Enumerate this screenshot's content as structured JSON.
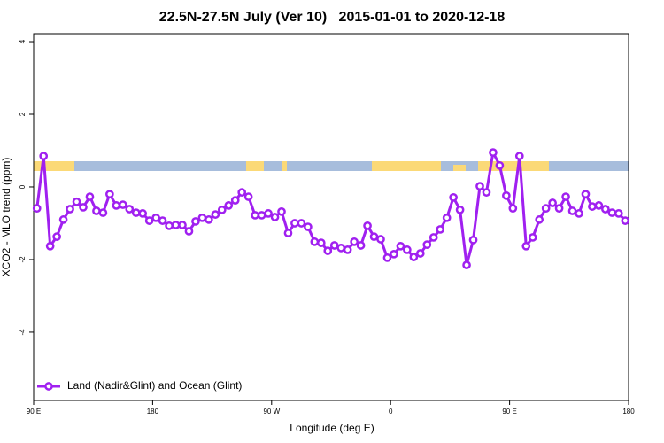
{
  "chart_data": {
    "type": "line",
    "title": "22.5N-27.5N July (Ver 10)   2015-01-01 to 2020-12-18",
    "x_label": "Longitude (deg E)",
    "y_label": "XCO2 - MLO trend (ppm)",
    "x": [
      92.5,
      97.5,
      102.5,
      107.5,
      112.5,
      117.5,
      122.5,
      127.5,
      132.5,
      137.5,
      142.5,
      147.5,
      152.5,
      157.5,
      162.5,
      167.5,
      172.5,
      177.5,
      182.5,
      187.5,
      192.5,
      197.5,
      202.5,
      207.5,
      212.5,
      217.5,
      222.5,
      227.5,
      232.5,
      237.5,
      242.5,
      247.5,
      252.5,
      257.5,
      262.5,
      267.5,
      272.5,
      277.5,
      282.5,
      287.5,
      292.5,
      297.5,
      302.5,
      307.5,
      312.5,
      317.5,
      322.5,
      327.5,
      332.5,
      337.5,
      342.5,
      347.5,
      352.5,
      357.5,
      362.5,
      367.5,
      372.5,
      377.5,
      382.5,
      387.5,
      392.5,
      397.5,
      402.5,
      407.5,
      412.5,
      417.5,
      422.5,
      427.5,
      432.5,
      437.5,
      442.5,
      447.5,
      452.5,
      457.5,
      462.5,
      467.5,
      472.5,
      477.5,
      482.5,
      487.5,
      492.5,
      497.5,
      502.5,
      507.5,
      512.5,
      517.5,
      522.5,
      527.5,
      532.5,
      537.5
    ],
    "series": [
      {
        "name": "Land (Nadir&Glint) and Ocean (Glint)",
        "color": "#a020f0",
        "values": [
          -0.59,
          0.85,
          -1.63,
          -1.37,
          -0.9,
          -0.61,
          -0.41,
          -0.56,
          -0.27,
          -0.66,
          -0.71,
          -0.2,
          -0.51,
          -0.49,
          -0.61,
          -0.71,
          -0.73,
          -0.93,
          -0.85,
          -0.93,
          -1.07,
          -1.05,
          -1.05,
          -1.22,
          -0.95,
          -0.85,
          -0.9,
          -0.76,
          -0.63,
          -0.51,
          -0.37,
          -0.15,
          -0.27,
          -0.78,
          -0.78,
          -0.73,
          -0.83,
          -0.68,
          -1.27,
          -1.0,
          -1.0,
          -1.1,
          -1.51,
          -1.54,
          -1.76,
          -1.61,
          -1.68,
          -1.73,
          -1.51,
          -1.61,
          -1.07,
          -1.37,
          -1.44,
          -1.95,
          -1.85,
          -1.63,
          -1.73,
          -1.93,
          -1.83,
          -1.59,
          -1.39,
          -1.17,
          -0.85,
          -0.29,
          -0.63,
          -2.15,
          -1.46,
          0.02,
          -0.15,
          0.95,
          0.59,
          -0.24,
          -0.59,
          0.85,
          -1.63,
          -1.39,
          -0.9,
          -0.59,
          -0.44,
          -0.59,
          -0.27,
          -0.66,
          -0.73,
          -0.2,
          -0.54,
          -0.51,
          -0.61,
          -0.71,
          -0.73,
          -0.93
        ]
      }
    ],
    "xlim": [
      90,
      540
    ],
    "xticks": [
      {
        "value": 90,
        "label": "90 E"
      },
      180,
      {
        "value": 270,
        "label": "90 W"
      },
      {
        "value": 360,
        "label": "0"
      },
      {
        "value": 450,
        "label": "90 E"
      },
      {
        "value": 540,
        "label": "180"
      }
    ],
    "ylim": [
      -5.88,
      4.22
    ],
    "yticks": [
      -4,
      -2,
      0,
      2,
      4
    ],
    "legend": "bottom-left"
  }
}
